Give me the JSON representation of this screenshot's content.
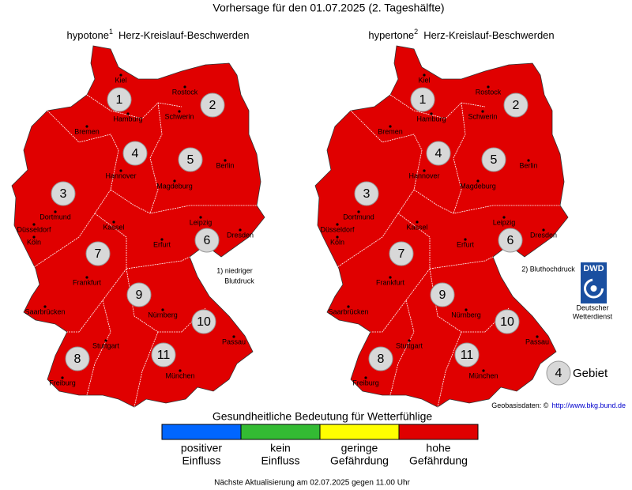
{
  "title": "Vorhersage für den 01.07.2025 (2. Tageshälfte)",
  "maps": [
    {
      "title": "hypotone",
      "sup": "1",
      "subtitle": "Herz-Kreislauf-Beschwerden",
      "color": "#e00000",
      "regions": [
        "1",
        "2",
        "3",
        "4",
        "5",
        "6",
        "7",
        "8",
        "9",
        "10",
        "11"
      ],
      "cities": [
        "Kiel",
        "Rostock",
        "Hamburg",
        "Schwerin",
        "Bremen",
        "Berlin",
        "Hannover",
        "Magdeburg",
        "Dortmund",
        "Düsseldorf",
        "Köln",
        "Kassel",
        "Leipzig",
        "Dresden",
        "Erfurt",
        "Frankfurt",
        "Saarbrücken",
        "Nürnberg",
        "Stuttgart",
        "Passau",
        "München",
        "Freiburg"
      ],
      "footnote": [
        "1) niedriger",
        "Blutdruck"
      ]
    },
    {
      "title": "hypertone",
      "sup": "2",
      "subtitle": "Herz-Kreislauf-Beschwerden",
      "color": "#e00000",
      "regions": [
        "1",
        "2",
        "3",
        "4",
        "5",
        "6",
        "7",
        "8",
        "9",
        "10",
        "11"
      ],
      "cities": [
        "Kiel",
        "Rostock",
        "Hamburg",
        "Schwerin",
        "Bremen",
        "Berlin",
        "Hannover",
        "Magdeburg",
        "Dortmund",
        "Düsseldorf",
        "Köln",
        "Kassel",
        "Leipzig",
        "Dresden",
        "Erfurt",
        "Frankfurt",
        "Saarbrücken",
        "Nürnberg",
        "Stuttgart",
        "Passau",
        "München",
        "Freiburg"
      ],
      "footnote": [
        "2) Bluthochdruck"
      ]
    }
  ],
  "logo": {
    "abbr": "DWD",
    "name": [
      "Deutscher",
      "Wetterdienst"
    ]
  },
  "key": {
    "number": "4",
    "label": "Gebiet"
  },
  "source": {
    "label": "Geobasisdaten: ©",
    "url": "http://www.bkg.bund.de"
  },
  "legend": {
    "title": "Gesundheitliche Bedeutung für Wetterfühlige",
    "items": [
      {
        "label": [
          "positiver",
          "Einfluss"
        ],
        "color": "#0066ff"
      },
      {
        "label": [
          "kein",
          "Einfluss"
        ],
        "color": "#33bb33"
      },
      {
        "label": [
          "geringe",
          "Gefährdung"
        ],
        "color": "#ffff00"
      },
      {
        "label": [
          "hohe",
          "Gefährdung"
        ],
        "color": "#e00000"
      }
    ]
  },
  "update": "Nächste Aktualisierung am 02.07.2025 gegen 11.00 Uhr"
}
